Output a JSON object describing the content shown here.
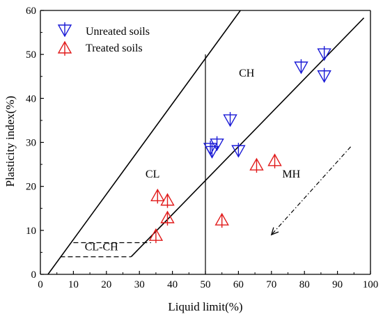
{
  "chart_data": {
    "type": "scatter",
    "xlabel": "Liquid limit(%)",
    "ylabel": "Plasticity index(%)",
    "xlim": [
      0,
      100
    ],
    "ylim": [
      0,
      60
    ],
    "xticks": [
      "0",
      "10",
      "20",
      "30",
      "40",
      "50",
      "60",
      "70",
      "80",
      "90",
      "100"
    ],
    "yticks": [
      "0",
      "10",
      "20",
      "30",
      "40",
      "50",
      "60"
    ],
    "grid": false,
    "legend_position": "top-left",
    "series": [
      {
        "name": "Unreated soils",
        "marker": "triangle-down",
        "color": "#1a1ad6",
        "points": [
          {
            "x": 51.5,
            "y": 28.5
          },
          {
            "x": 52.0,
            "y": 27.8
          },
          {
            "x": 53.5,
            "y": 29.5
          },
          {
            "x": 57.5,
            "y": 35.0
          },
          {
            "x": 60.0,
            "y": 28.0
          },
          {
            "x": 79.0,
            "y": 47.0
          },
          {
            "x": 86.0,
            "y": 50.0
          },
          {
            "x": 86.0,
            "y": 45.0
          }
        ]
      },
      {
        "name": "Treated soils",
        "marker": "triangle-up",
        "color": "#e11a1a",
        "points": [
          {
            "x": 35.5,
            "y": 18.0
          },
          {
            "x": 38.5,
            "y": 17.0
          },
          {
            "x": 38.5,
            "y": 13.0
          },
          {
            "x": 35.0,
            "y": 9.0
          },
          {
            "x": 55.0,
            "y": 12.5
          },
          {
            "x": 65.5,
            "y": 25.0
          },
          {
            "x": 71.0,
            "y": 26.0
          }
        ]
      }
    ],
    "lines": {
      "u_line": [
        [
          2.3,
          0
        ],
        [
          60.6,
          60
        ]
      ],
      "a_line": [
        [
          27.5,
          4
        ],
        [
          98,
          58.3
        ]
      ],
      "ll50": [
        [
          50,
          0
        ],
        [
          50,
          50
        ]
      ],
      "cl_upper_dash": [
        [
          10,
          7.2
        ],
        [
          33.5,
          7.2
        ]
      ],
      "cl_lower_dash": [
        [
          6,
          4
        ],
        [
          27.5,
          4
        ]
      ],
      "arrow": [
        [
          94,
          29
        ],
        [
          70,
          9
        ]
      ]
    },
    "region_labels": [
      {
        "text": "CH",
        "x": 62.5,
        "y": 45
      },
      {
        "text": "CL",
        "x": 34,
        "y": 22
      },
      {
        "text": "MH",
        "x": 76,
        "y": 22
      },
      {
        "text": "CL-CH",
        "x": 18.5,
        "y": 5.5
      }
    ]
  }
}
